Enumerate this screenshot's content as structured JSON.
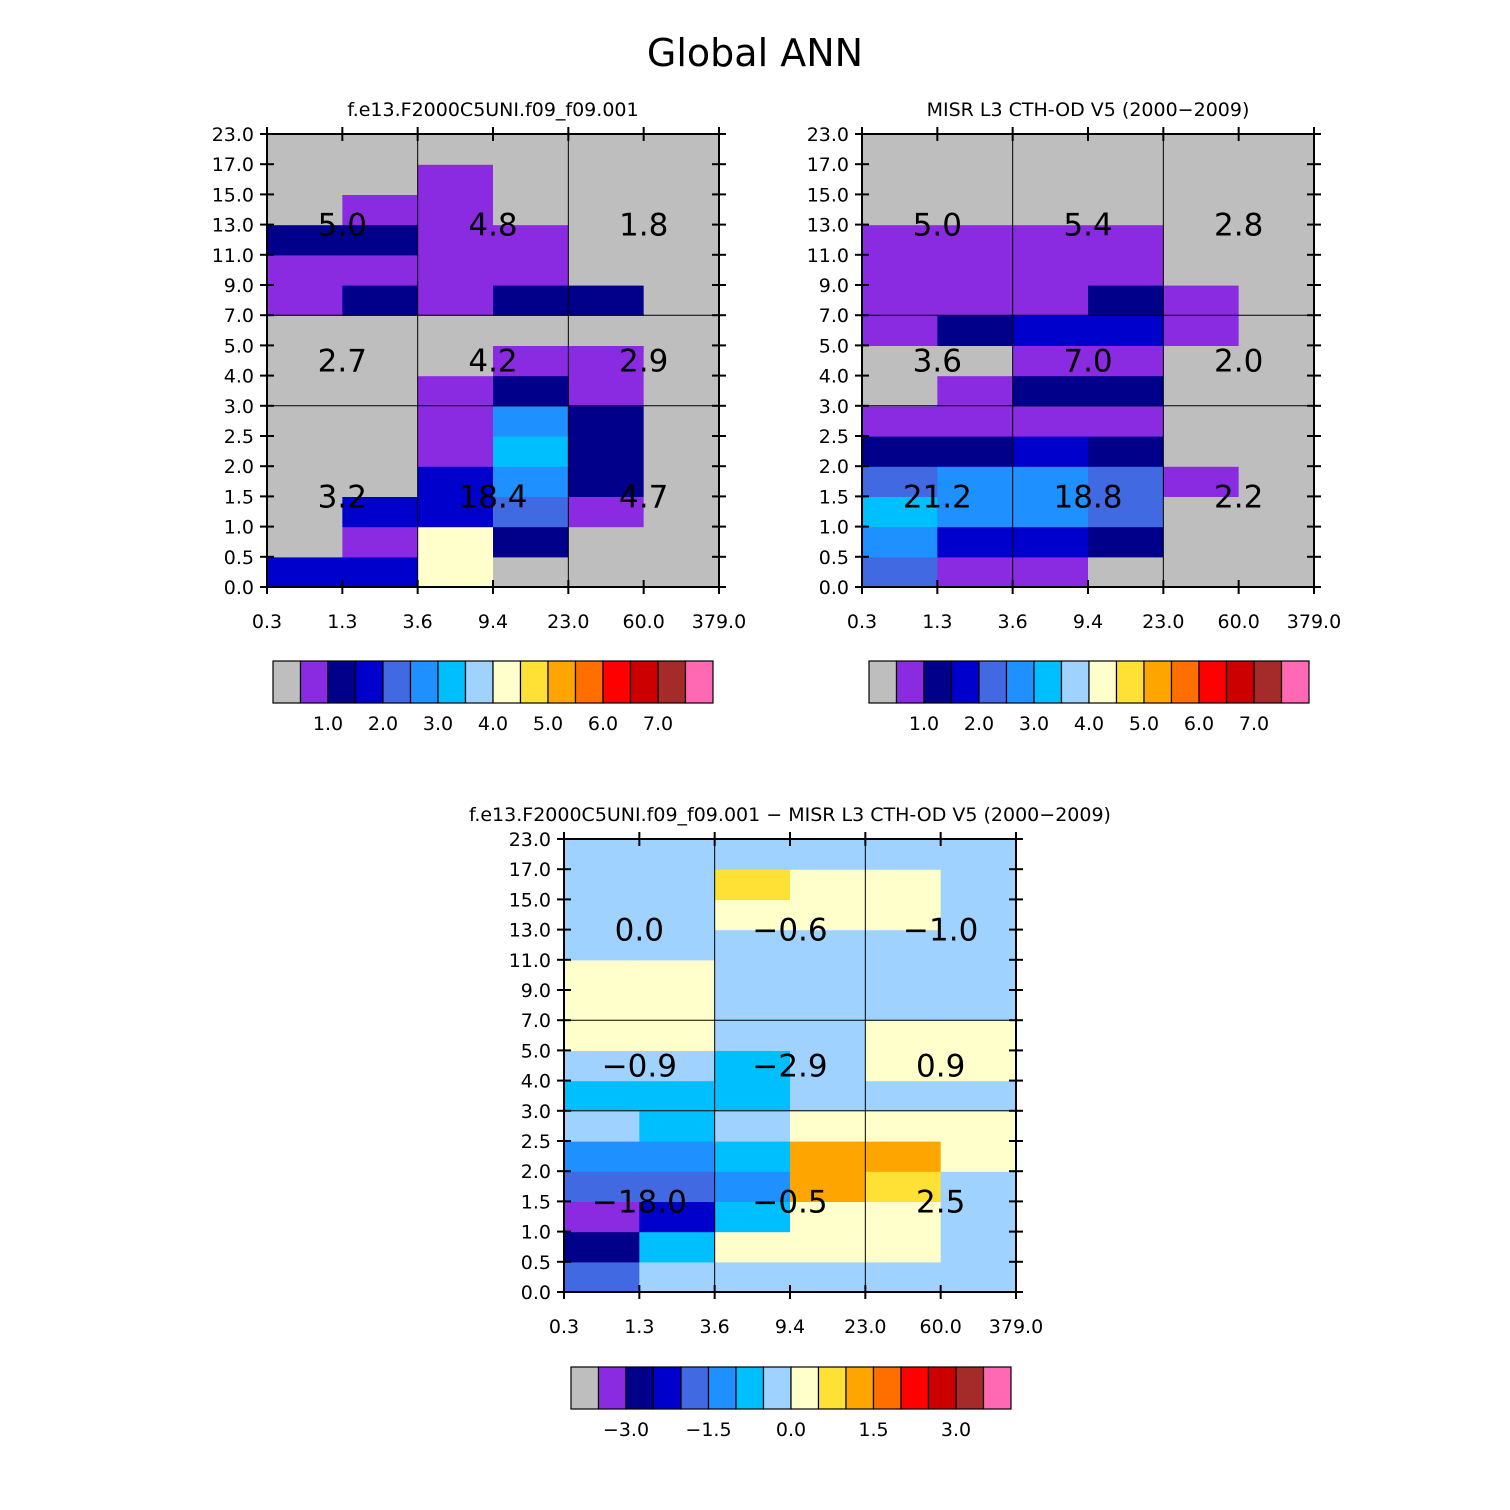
{
  "figure_title": "Global ANN",
  "colors": {
    "palette": [
      "#bebebe",
      "#8a2be2",
      "#00008b",
      "#0000cd",
      "#4169e1",
      "#1e90ff",
      "#00bfff",
      "#a0d2ff",
      "#ffffcc",
      "#ffe135",
      "#ffa500",
      "#ff6f00",
      "#ff0000",
      "#cd0000",
      "#a52a2a",
      "#ff69b4"
    ],
    "frame": "#000000",
    "background": "#ffffff"
  },
  "chart_data": [
    {
      "type": "heatmap",
      "panel": "top-left",
      "title": "f.e13.F2000C5UNI.f09_f09.001",
      "x_tick_labels": [
        "0.3",
        "1.3",
        "3.6",
        "9.4",
        "23.0",
        "60.0",
        "379.0"
      ],
      "y_tick_labels": [
        "0.0",
        "0.5",
        "1.0",
        "1.5",
        "2.0",
        "2.5",
        "3.0",
        "4.0",
        "5.0",
        "7.0",
        "9.0",
        "11.0",
        "13.0",
        "15.0",
        "17.0",
        "23.0"
      ],
      "cells": [
        [
          3,
          3,
          8,
          0,
          0,
          0
        ],
        [
          0,
          1,
          8,
          2,
          0,
          0
        ],
        [
          0,
          3,
          3,
          4,
          1,
          0
        ],
        [
          0,
          0,
          3,
          5,
          2,
          0
        ],
        [
          0,
          0,
          1,
          6,
          2,
          0
        ],
        [
          0,
          0,
          1,
          5,
          2,
          0
        ],
        [
          0,
          0,
          1,
          2,
          1,
          0
        ],
        [
          0,
          0,
          0,
          1,
          1,
          0
        ],
        [
          0,
          0,
          0,
          0,
          0,
          0
        ],
        [
          1,
          2,
          1,
          2,
          2,
          0
        ],
        [
          1,
          1,
          1,
          1,
          0,
          0
        ],
        [
          2,
          2,
          1,
          1,
          0,
          0
        ],
        [
          0,
          1,
          1,
          0,
          0,
          0
        ],
        [
          0,
          0,
          1,
          0,
          0,
          0
        ],
        [
          0,
          0,
          0,
          0,
          0,
          0
        ]
      ],
      "region_labels": [
        {
          "col": 0,
          "row": 0,
          "value": "3.2"
        },
        {
          "col": 1,
          "row": 0,
          "value": "18.4"
        },
        {
          "col": 2,
          "row": 0,
          "value": "4.7"
        },
        {
          "col": 0,
          "row": 1,
          "value": "2.7"
        },
        {
          "col": 1,
          "row": 1,
          "value": "4.2"
        },
        {
          "col": 2,
          "row": 1,
          "value": "2.9"
        },
        {
          "col": 0,
          "row": 2,
          "value": "5.0"
        },
        {
          "col": 1,
          "row": 2,
          "value": "4.8"
        },
        {
          "col": 2,
          "row": 2,
          "value": "1.8"
        }
      ],
      "colorbar_labels": [
        "1.0",
        "2.0",
        "3.0",
        "4.0",
        "5.0",
        "6.0",
        "7.0"
      ]
    },
    {
      "type": "heatmap",
      "panel": "top-right",
      "title": "MISR L3 CTH-OD V5 (2000-2009)",
      "x_tick_labels": [
        "0.3",
        "1.3",
        "3.6",
        "9.4",
        "23.0",
        "60.0",
        "379.0"
      ],
      "y_tick_labels": [
        "0.0",
        "0.5",
        "1.0",
        "1.5",
        "2.0",
        "2.5",
        "3.0",
        "4.0",
        "5.0",
        "7.0",
        "9.0",
        "11.0",
        "13.0",
        "15.0",
        "17.0",
        "23.0"
      ],
      "cells": [
        [
          4,
          1,
          1,
          0,
          0,
          0
        ],
        [
          5,
          3,
          3,
          2,
          0,
          0
        ],
        [
          6,
          5,
          5,
          4,
          0,
          0
        ],
        [
          4,
          5,
          5,
          4,
          1,
          0
        ],
        [
          2,
          2,
          3,
          2,
          0,
          0
        ],
        [
          1,
          1,
          1,
          1,
          0,
          0
        ],
        [
          0,
          1,
          2,
          2,
          0,
          0
        ],
        [
          0,
          0,
          1,
          1,
          0,
          0
        ],
        [
          1,
          2,
          3,
          3,
          1,
          0
        ],
        [
          1,
          1,
          1,
          2,
          1,
          0
        ],
        [
          1,
          1,
          1,
          1,
          0,
          0
        ],
        [
          1,
          1,
          1,
          1,
          0,
          0
        ],
        [
          0,
          0,
          0,
          0,
          0,
          0
        ],
        [
          0,
          0,
          0,
          0,
          0,
          0
        ],
        [
          0,
          0,
          0,
          0,
          0,
          0
        ]
      ],
      "region_labels": [
        {
          "col": 0,
          "row": 0,
          "value": "21.2"
        },
        {
          "col": 1,
          "row": 0,
          "value": "18.8"
        },
        {
          "col": 2,
          "row": 0,
          "value": "2.2"
        },
        {
          "col": 0,
          "row": 1,
          "value": "3.6"
        },
        {
          "col": 1,
          "row": 1,
          "value": "7.0"
        },
        {
          "col": 2,
          "row": 1,
          "value": "2.0"
        },
        {
          "col": 0,
          "row": 2,
          "value": "5.0"
        },
        {
          "col": 1,
          "row": 2,
          "value": "5.4"
        },
        {
          "col": 2,
          "row": 2,
          "value": "2.8"
        }
      ],
      "colorbar_labels": [
        "1.0",
        "2.0",
        "3.0",
        "4.0",
        "5.0",
        "6.0",
        "7.0"
      ]
    },
    {
      "type": "heatmap",
      "panel": "bottom",
      "title": "f.e13.F2000C5UNI.f09_f09.001 - MISR L3 CTH-OD V5 (2000-2009)",
      "x_tick_labels": [
        "0.3",
        "1.3",
        "3.6",
        "9.4",
        "23.0",
        "60.0",
        "379.0"
      ],
      "y_tick_labels": [
        "0.0",
        "0.5",
        "1.0",
        "1.5",
        "2.0",
        "2.5",
        "3.0",
        "4.0",
        "5.0",
        "7.0",
        "9.0",
        "11.0",
        "13.0",
        "15.0",
        "17.0",
        "23.0"
      ],
      "cells": [
        [
          4,
          7,
          7,
          7,
          7,
          7
        ],
        [
          2,
          6,
          8,
          8,
          8,
          7
        ],
        [
          1,
          3,
          6,
          8,
          8,
          7
        ],
        [
          4,
          4,
          5,
          10,
          9,
          7
        ],
        [
          5,
          5,
          6,
          10,
          10,
          8
        ],
        [
          7,
          6,
          7,
          8,
          8,
          8
        ],
        [
          6,
          6,
          6,
          7,
          7,
          7
        ],
        [
          7,
          7,
          6,
          7,
          8,
          8
        ],
        [
          8,
          8,
          7,
          7,
          8,
          8
        ],
        [
          8,
          8,
          7,
          7,
          7,
          7
        ],
        [
          8,
          8,
          7,
          7,
          7,
          7
        ],
        [
          7,
          7,
          7,
          7,
          7,
          7
        ],
        [
          7,
          7,
          8,
          8,
          8,
          7
        ],
        [
          7,
          7,
          9,
          8,
          8,
          7
        ],
        [
          7,
          7,
          7,
          7,
          7,
          7
        ]
      ],
      "region_labels": [
        {
          "col": 0,
          "row": 0,
          "value": "-18.0"
        },
        {
          "col": 1,
          "row": 0,
          "value": "-0.5"
        },
        {
          "col": 2,
          "row": 0,
          "value": "2.5"
        },
        {
          "col": 0,
          "row": 1,
          "value": "-0.9"
        },
        {
          "col": 1,
          "row": 1,
          "value": "-2.9"
        },
        {
          "col": 2,
          "row": 1,
          "value": "0.9"
        },
        {
          "col": 0,
          "row": 2,
          "value": "0.0"
        },
        {
          "col": 1,
          "row": 2,
          "value": "-0.6"
        },
        {
          "col": 2,
          "row": 2,
          "value": "-1.0"
        }
      ],
      "colorbar_labels": [
        "-3.0",
        "-1.5",
        "0.0",
        "1.5",
        "3.0"
      ]
    }
  ]
}
